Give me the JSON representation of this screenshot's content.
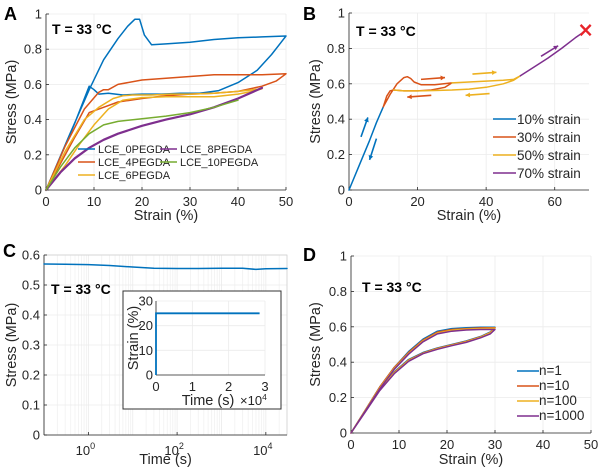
{
  "chart_data": [
    {
      "panel": "A",
      "type": "line",
      "annotation": "T = 33 °C",
      "xlabel": "Strain (%)",
      "ylabel": "Stress (MPa)",
      "xlim": [
        0,
        50
      ],
      "ylim": [
        0,
        1
      ],
      "xticks": [
        0,
        10,
        20,
        30,
        40,
        50
      ],
      "yticks": [
        0,
        0.2,
        0.4,
        0.6,
        0.8,
        1
      ],
      "ytick_labels": [
        "0",
        "0.2",
        "0.4",
        "0.6",
        "0.8",
        "1"
      ],
      "grid": true,
      "legend": "bottom-center, two columns",
      "series": [
        {
          "name": "LCE_0PEGDA",
          "color": "#0072BD",
          "x": [
            0,
            5,
            9,
            12,
            15,
            17,
            18.5,
            19.5,
            20.5,
            22,
            25,
            30,
            35,
            40,
            45,
            50,
            49,
            47,
            44,
            40,
            36,
            32,
            28,
            24,
            20,
            16,
            13,
            11,
            10,
            9,
            6,
            3,
            0
          ],
          "y": [
            0,
            0.32,
            0.57,
            0.74,
            0.86,
            0.93,
            0.97,
            0.97,
            0.88,
            0.825,
            0.83,
            0.84,
            0.855,
            0.865,
            0.87,
            0.875,
            0.84,
            0.77,
            0.68,
            0.61,
            0.565,
            0.55,
            0.55,
            0.545,
            0.545,
            0.54,
            0.55,
            0.545,
            0.57,
            0.59,
            0.38,
            0.19,
            0
          ]
        },
        {
          "name": "LCE_4PEGDA",
          "color": "#D95319",
          "x": [
            0,
            4,
            8,
            11,
            12,
            13,
            15,
            20,
            25,
            30,
            35,
            40,
            45,
            50,
            48,
            45,
            40,
            35,
            30,
            25,
            20,
            15,
            12,
            10,
            9,
            6,
            3,
            0
          ],
          "y": [
            0,
            0.25,
            0.46,
            0.555,
            0.57,
            0.57,
            0.6,
            0.625,
            0.635,
            0.645,
            0.655,
            0.655,
            0.655,
            0.66,
            0.62,
            0.59,
            0.56,
            0.55,
            0.545,
            0.535,
            0.52,
            0.5,
            0.47,
            0.45,
            0.44,
            0.3,
            0.15,
            0
          ]
        },
        {
          "name": "LCE_6PEGDA",
          "color": "#EDB120",
          "x": [
            0,
            4,
            8,
            11,
            14,
            16,
            18,
            22,
            26,
            30,
            35,
            40,
            45,
            43,
            40,
            35,
            30,
            25,
            20,
            16,
            13,
            10,
            7,
            4,
            0
          ],
          "y": [
            0,
            0.22,
            0.4,
            0.47,
            0.52,
            0.535,
            0.54,
            0.54,
            0.545,
            0.545,
            0.55,
            0.56,
            0.575,
            0.56,
            0.545,
            0.53,
            0.53,
            0.53,
            0.525,
            0.51,
            0.46,
            0.37,
            0.26,
            0.14,
            0
          ]
        },
        {
          "name": "LCE_8PEGDA",
          "color": "#7E2F8E",
          "x": [
            0,
            3,
            6,
            9,
            12,
            15,
            20,
            25,
            30,
            35,
            40,
            45
          ],
          "y": [
            0,
            0.1,
            0.18,
            0.24,
            0.285,
            0.32,
            0.365,
            0.4,
            0.43,
            0.47,
            0.52,
            0.58
          ]
        },
        {
          "name": "LCE_10PEGDA",
          "color": "#77AC30",
          "x": [
            0,
            3,
            6,
            9,
            12,
            15,
            20,
            25,
            30,
            35,
            40
          ],
          "y": [
            0,
            0.13,
            0.24,
            0.32,
            0.37,
            0.39,
            0.405,
            0.42,
            0.44,
            0.47,
            0.51
          ]
        }
      ]
    },
    {
      "panel": "B",
      "type": "line",
      "annotation": "T = 33 °C",
      "xlabel": "Strain (%)",
      "ylabel": "Stress (MPa)",
      "xlim": [
        0,
        70
      ],
      "ylim": [
        0,
        1
      ],
      "xticks": [
        0,
        20,
        40,
        60
      ],
      "yticks": [
        0,
        0.2,
        0.4,
        0.6,
        0.8,
        1
      ],
      "ytick_labels": [
        "0",
        "0.2",
        "0.4",
        "0.6",
        "0.8",
        "1"
      ],
      "grid": true,
      "legend": "bottom-right",
      "break_marker": {
        "x": 69,
        "y": 0.9,
        "symbol": "×",
        "color": "#E8242A"
      },
      "series": [
        {
          "name": "10% strain",
          "color": "#0072BD",
          "x": [
            0,
            3,
            6,
            8,
            10
          ],
          "y": [
            0,
            0.14,
            0.28,
            0.38,
            0.47
          ]
        },
        {
          "name": "30% strain",
          "color": "#D95319",
          "x": [
            10,
            12,
            14,
            16,
            17,
            18,
            19,
            21,
            25,
            30,
            28,
            24,
            20,
            16,
            13,
            12,
            11,
            10
          ],
          "y": [
            0.47,
            0.54,
            0.6,
            0.635,
            0.64,
            0.63,
            0.61,
            0.595,
            0.595,
            0.605,
            0.58,
            0.565,
            0.56,
            0.56,
            0.565,
            0.56,
            0.53,
            0.47
          ]
        },
        {
          "name": "50% strain",
          "color": "#EDB120",
          "x": [
            30,
            35,
            40,
            45,
            48,
            50,
            48,
            45,
            40,
            35,
            30,
            25,
            20,
            16,
            13
          ],
          "y": [
            0.605,
            0.61,
            0.615,
            0.62,
            0.625,
            0.645,
            0.62,
            0.6,
            0.58,
            0.57,
            0.565,
            0.562,
            0.56,
            0.56,
            0.565
          ]
        },
        {
          "name": "70% strain",
          "color": "#7E2F8E",
          "x": [
            50,
            54,
            58,
            62,
            66,
            69
          ],
          "y": [
            0.645,
            0.695,
            0.745,
            0.8,
            0.86,
            0.9
          ]
        }
      ],
      "arrows": [
        {
          "color": "#0072BD",
          "from": [
            3.5,
            0.3
          ],
          "to": [
            5.5,
            0.41
          ]
        },
        {
          "color": "#0072BD",
          "from": [
            8,
            0.29
          ],
          "to": [
            6,
            0.17
          ]
        },
        {
          "color": "#D95319",
          "from": [
            21,
            0.625
          ],
          "to": [
            28,
            0.635
          ]
        },
        {
          "color": "#D95319",
          "from": [
            24,
            0.535
          ],
          "to": [
            17,
            0.525
          ]
        },
        {
          "color": "#EDB120",
          "from": [
            36,
            0.655
          ],
          "to": [
            43,
            0.665
          ]
        },
        {
          "color": "#EDB120",
          "from": [
            41,
            0.545
          ],
          "to": [
            34,
            0.535
          ]
        },
        {
          "color": "#7E2F8E",
          "from": [
            56,
            0.755
          ],
          "to": [
            61,
            0.815
          ]
        }
      ]
    },
    {
      "panel": "C",
      "type": "line",
      "annotation": "T = 33 °C",
      "xlabel": "Time (s)",
      "ylabel": "Stress (MPa)",
      "xscale": "log",
      "xlim": [
        0.1,
        30000
      ],
      "ylim": [
        0,
        0.6
      ],
      "xticks": [
        1,
        100,
        10000
      ],
      "xtick_labels": [
        {
          "base": "10",
          "exp": "0"
        },
        {
          "base": "10",
          "exp": "2"
        },
        {
          "base": "10",
          "exp": "4"
        }
      ],
      "yticks": [
        0,
        0.1,
        0.2,
        0.3,
        0.4,
        0.5,
        0.6
      ],
      "ytick_labels": [
        "0",
        "0.1",
        "0.2",
        "0.3",
        "0.4",
        "0.5",
        "0.6"
      ],
      "grid": true,
      "series": [
        {
          "name": "stress",
          "color": "#0072BD",
          "x": [
            0.1,
            0.3,
            1,
            3,
            10,
            30,
            100,
            300,
            1000,
            3000,
            6000,
            10000,
            30000
          ],
          "y": [
            0.57,
            0.569,
            0.568,
            0.565,
            0.56,
            0.556,
            0.555,
            0.555,
            0.556,
            0.556,
            0.552,
            0.554,
            0.555
          ]
        }
      ],
      "inset": {
        "type": "line",
        "xlabel": "Time (s)",
        "xlabel_multiplier": "×10",
        "xlabel_multiplier_exp": "4",
        "ylabel": "Strain (%)",
        "xlim": [
          0,
          3
        ],
        "ylim": [
          0,
          30
        ],
        "xticks": [
          0,
          1,
          2,
          3
        ],
        "yticks": [
          0,
          10,
          20,
          30
        ],
        "series": [
          {
            "name": "strain",
            "color": "#0072BD",
            "x": [
              0,
              0,
              2.85
            ],
            "y": [
              0,
              25,
              25
            ]
          }
        ]
      }
    },
    {
      "panel": "D",
      "type": "line",
      "annotation": "T = 33 °C",
      "xlabel": "Strain (%)",
      "ylabel": "Stress (MPa)",
      "xlim": [
        0,
        50
      ],
      "ylim": [
        0,
        1
      ],
      "xticks": [
        0,
        10,
        20,
        30,
        40,
        50
      ],
      "yticks": [
        0,
        0.2,
        0.4,
        0.6,
        0.8,
        1
      ],
      "ytick_labels": [
        "0",
        "0.2",
        "0.4",
        "0.6",
        "0.8",
        "1"
      ],
      "grid": true,
      "legend": "bottom-right",
      "series": [
        {
          "name": "n=1",
          "color": "#0072BD",
          "x": [
            0,
            3,
            6,
            9,
            12,
            15,
            18,
            21,
            24,
            27,
            30,
            29,
            27,
            24,
            21,
            18,
            15,
            12,
            9,
            6,
            3,
            0
          ],
          "y": [
            0,
            0.13,
            0.26,
            0.37,
            0.46,
            0.53,
            0.575,
            0.59,
            0.595,
            0.598,
            0.598,
            0.57,
            0.545,
            0.52,
            0.5,
            0.48,
            0.455,
            0.415,
            0.345,
            0.25,
            0.13,
            0
          ]
        },
        {
          "name": "n=10",
          "color": "#D95319",
          "x": [
            0,
            3,
            6,
            9,
            12,
            15,
            18,
            21,
            24,
            27,
            30,
            29,
            27,
            24,
            21,
            18,
            15,
            12,
            9,
            6,
            3,
            0
          ],
          "y": [
            0,
            0.13,
            0.26,
            0.37,
            0.455,
            0.525,
            0.57,
            0.585,
            0.59,
            0.594,
            0.595,
            0.568,
            0.543,
            0.518,
            0.498,
            0.478,
            0.452,
            0.412,
            0.342,
            0.248,
            0.128,
            0
          ]
        },
        {
          "name": "n=100",
          "color": "#EDB120",
          "x": [
            0,
            3,
            6,
            9,
            12,
            15,
            18,
            21,
            24,
            27,
            30,
            29,
            27,
            24,
            21,
            18,
            15,
            12,
            9,
            6,
            3,
            0
          ],
          "y": [
            0,
            0.128,
            0.255,
            0.365,
            0.45,
            0.52,
            0.565,
            0.58,
            0.587,
            0.59,
            0.592,
            0.566,
            0.541,
            0.516,
            0.496,
            0.476,
            0.45,
            0.41,
            0.34,
            0.246,
            0.126,
            0
          ]
        },
        {
          "name": "n=1000",
          "color": "#7E2F8E",
          "x": [
            0,
            3,
            6,
            9,
            12,
            15,
            18,
            21,
            24,
            27,
            30,
            29,
            27,
            24,
            21,
            18,
            15,
            12,
            9,
            6,
            3,
            0
          ],
          "y": [
            0,
            0.125,
            0.25,
            0.36,
            0.445,
            0.515,
            0.56,
            0.575,
            0.582,
            0.585,
            0.585,
            0.56,
            0.538,
            0.512,
            0.493,
            0.473,
            0.448,
            0.405,
            0.335,
            0.24,
            0.12,
            0
          ]
        }
      ]
    }
  ]
}
